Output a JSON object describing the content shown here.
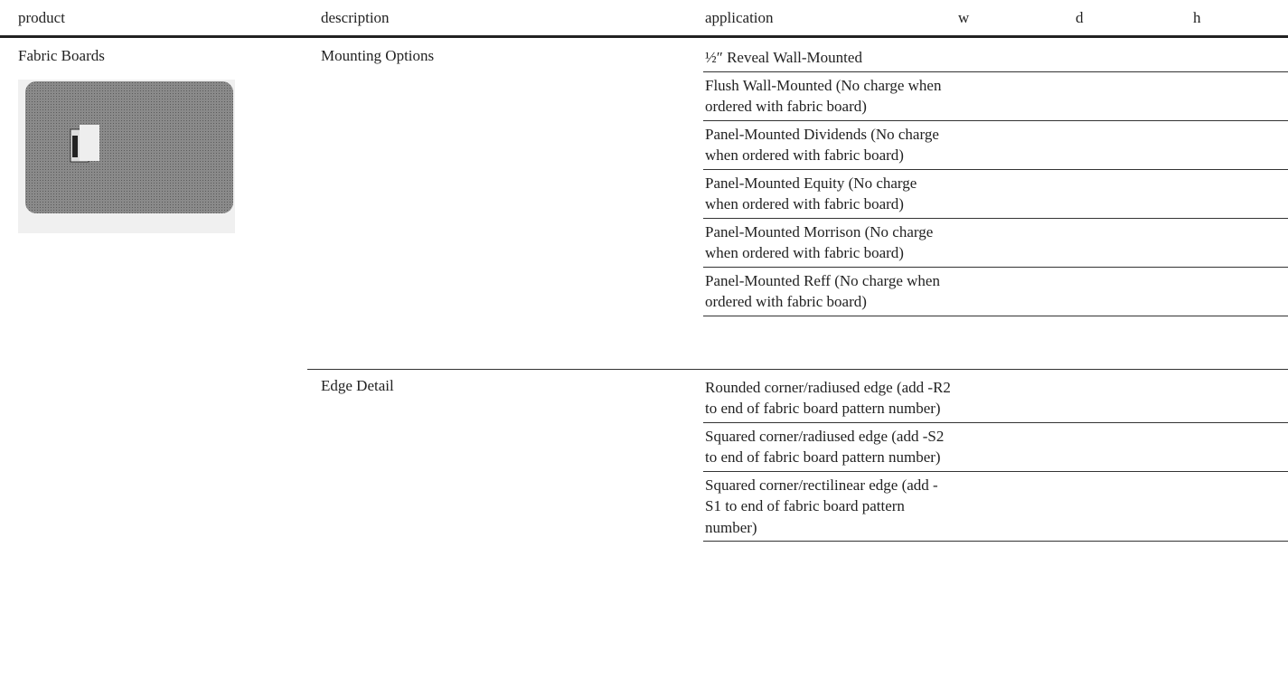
{
  "table": {
    "headers": [
      "product",
      "description",
      "application",
      "w",
      "d",
      "h"
    ],
    "product": "Fabric Boards",
    "groups": [
      {
        "description": "Mounting Options",
        "applications": [
          "½″ Reveal Wall-Mounted",
          "Flush Wall-Mounted (No charge when ordered with fabric board)",
          "Panel-Mounted Dividends (No charge when ordered with fabric board)",
          "Panel-Mounted Equity (No charge when ordered with fabric board)",
          "Panel-Mounted Morrison (No charge when ordered with fabric board)",
          "Panel-Mounted Reff (No charge when ordered with fabric board)"
        ]
      },
      {
        "description": "Edge Detail",
        "applications": [
          "Rounded corner/radiused edge (add -R2 to end of fabric board pattern number)",
          "Squared corner/radiused edge (add -S2 to end of fabric board pattern number)",
          "Squared corner/rectilinear edge (add -S1 to end of fabric board pattern number)"
        ]
      }
    ]
  }
}
